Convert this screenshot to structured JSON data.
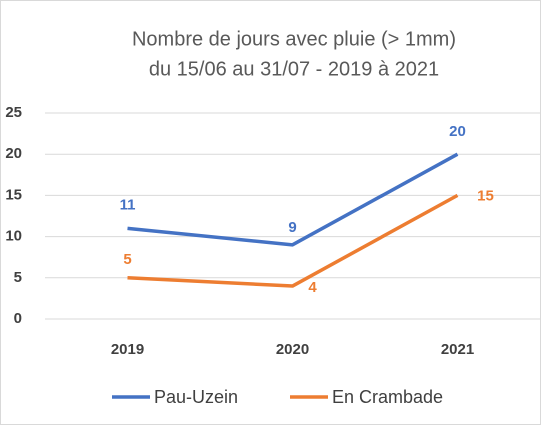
{
  "chart_data": {
    "type": "line",
    "title": "Nombre de jours avec pluie (> 1mm)",
    "subtitle": "du 15/06 au 31/07 - 2019 à 2021",
    "categories": [
      "2019",
      "2020",
      "2021"
    ],
    "series": [
      {
        "name": "Pau-Uzein",
        "color": "#4472c4",
        "values": [
          11,
          9,
          20
        ]
      },
      {
        "name": "En Crambade",
        "color": "#ed7d31",
        "values": [
          5,
          4,
          15
        ]
      }
    ],
    "ylim": [
      0,
      25
    ],
    "yticks": [
      0,
      5,
      10,
      15,
      20,
      25
    ],
    "grid": true,
    "legend": "bottom"
  }
}
